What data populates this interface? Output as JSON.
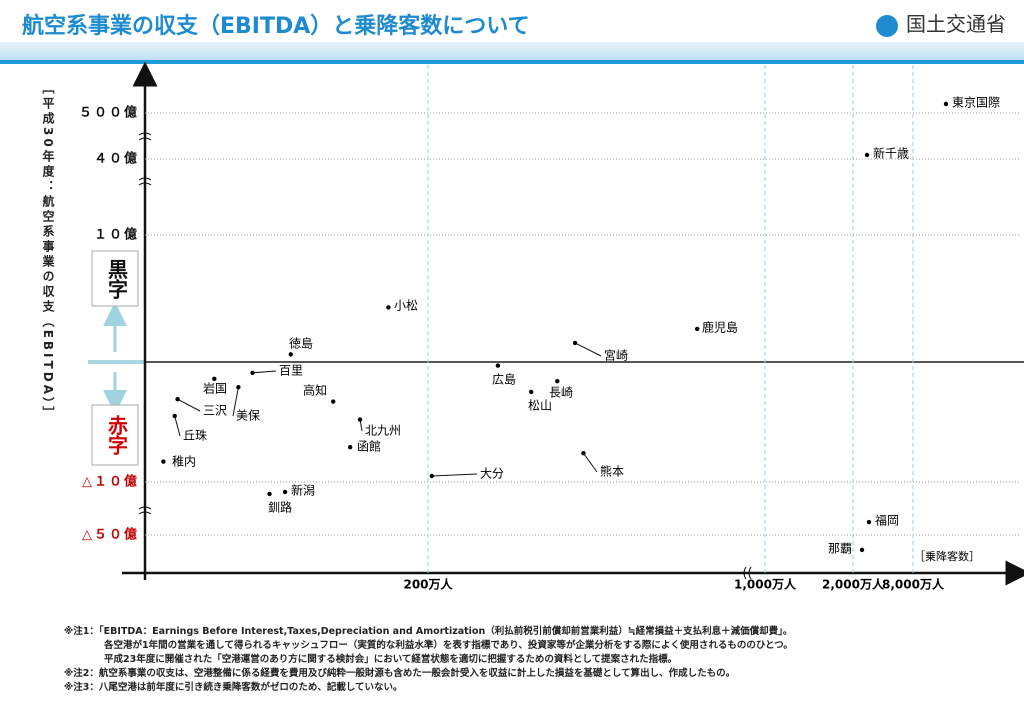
{
  "header": {
    "title": "航空系事業の収支（EBITDA）と乗降客数について",
    "logo": "国土交通省"
  },
  "chart_data": {
    "type": "scatter",
    "y_label": "［平成30年度：航空系事業の収支（EBITDA）］",
    "x_label": "［乗降客数］",
    "annotations": [
      "黒字",
      "赤字"
    ],
    "labels": [
      "東京国際",
      "新千歳",
      "小松",
      "鹿児島",
      "宮崎",
      "徳島",
      "百里",
      "岩国",
      "三沢",
      "美保",
      "丘珠",
      "稚内",
      "高知",
      "北九州",
      "函館",
      "新潟",
      "釧路",
      "大分",
      "広島",
      "松山",
      "長崎",
      "熊本",
      "福岡",
      "那覇"
    ],
    "x": [
      11300,
      3400,
      172,
      839,
      549,
      103,
      76,
      49,
      23,
      66,
      21,
      13,
      133,
      152,
      145,
      99,
      88,
      209,
      366,
      445,
      507,
      569,
      3600,
      2900
    ],
    "values": [
      590,
      80,
      4.3,
      2.6,
      1.5,
      0.6,
      -0.9,
      -1.4,
      -3.1,
      -2.1,
      -4.5,
      -8.3,
      -3.3,
      -4.8,
      -7.1,
      -17.5,
      -19,
      -9.5,
      -0.3,
      -2.5,
      -1.6,
      -7.6,
      -40.2,
      -61.3
    ],
    "color": "#000000",
    "xlim": [
      0,
      18000
    ],
    "xticks": [
      {
        "value": 200,
        "label": "200万人"
      },
      {
        "value": 1000,
        "label": "1,000万人"
      },
      {
        "value": 2000,
        "label": "2,000万人"
      },
      {
        "value": 8000,
        "label": "8,000万人"
      }
    ],
    "ylim": [
      -78,
      800
    ],
    "yticks": [
      {
        "value": 500,
        "label": "５００億"
      },
      {
        "value": 40,
        "label": "４０億"
      },
      {
        "value": 10,
        "label": "１０億"
      },
      {
        "value": -10,
        "label": "△１０億"
      },
      {
        "value": -50,
        "label": "△５０億"
      }
    ],
    "grid": true
  },
  "notes": [
    "※注1：「EBITDA：Earnings Before Interest,Taxes,Depreciation and Amortization（利払前税引前償却前営業利益）≒経常損益＋支払利息＋減価償却費」。",
    "各空港が1年間の営業を通して得られるキャッシュフロー（実質的な利益水準）を表す指標であり、投資家等が企業分析をする際によく使用されるもののひとつ。",
    "平成23年度に開催された「空港運営のあり方に関する検討会」において経営状態を適切に把握するための資料として提案された指標。",
    "※注2：航空系事業の収支は、空港整備に係る経費を費用及び純粋一般財源も含めた一般会計受入を収益に計上した損益を基礎として算出し、作成したもの。",
    "※注3：八尾空港は前年度に引き続き乗降客数がゼロのため、記載していない。"
  ]
}
